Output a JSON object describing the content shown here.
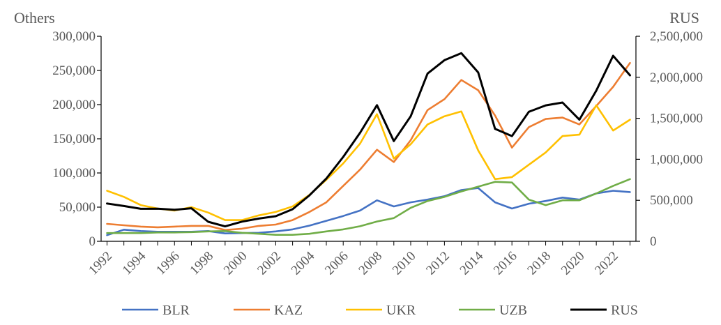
{
  "chart_data": {
    "type": "line",
    "title": "",
    "y_left_label": "Others",
    "y_right_label": "RUS",
    "y_left_lim": [
      0,
      300000
    ],
    "y_right_lim": [
      0,
      2500000
    ],
    "y_left_ticks": [
      "0",
      "50,000",
      "100,000",
      "150,000",
      "200,000",
      "250,000",
      "300,000"
    ],
    "y_right_ticks": [
      "0",
      "500,000",
      "1,000,000",
      "1,500,000",
      "2,000,000",
      "2,500,000"
    ],
    "x_tick_labels": [
      "1992",
      "1994",
      "1996",
      "1998",
      "2000",
      "2002",
      "2004",
      "2006",
      "2008",
      "2010",
      "2012",
      "2014",
      "2016",
      "2018",
      "2020",
      "2022"
    ],
    "x": [
      1992,
      1993,
      1994,
      1995,
      1996,
      1997,
      1998,
      1999,
      2000,
      2001,
      2002,
      2003,
      2004,
      2005,
      2006,
      2007,
      2008,
      2009,
      2010,
      2011,
      2012,
      2013,
      2014,
      2015,
      2016,
      2017,
      2018,
      2019,
      2020,
      2021,
      2022,
      2023
    ],
    "grid": false,
    "legend_position": "bottom",
    "series": [
      {
        "name": "BLR",
        "axis": "left",
        "color": "#4472C4",
        "values": [
          9000,
          17000,
          15000,
          14000,
          14000,
          14000,
          15000,
          11500,
          12000,
          12500,
          14500,
          17500,
          23000,
          30000,
          37000,
          45000,
          60000,
          51000,
          57000,
          61000,
          66000,
          75000,
          78000,
          57000,
          48000,
          55000,
          59000,
          64000,
          61000,
          70000,
          74000,
          72000
        ]
      },
      {
        "name": "KAZ",
        "axis": "left",
        "color": "#ED7D31",
        "values": [
          25500,
          23500,
          21500,
          20500,
          21500,
          22500,
          22500,
          16500,
          18500,
          22500,
          24500,
          31000,
          43000,
          57000,
          81000,
          105000,
          134000,
          116000,
          148000,
          192000,
          208000,
          236000,
          221000,
          184000,
          137000,
          167000,
          179000,
          181000,
          171000,
          198000,
          226000,
          261000
        ]
      },
      {
        "name": "UKR",
        "axis": "left",
        "color": "#FFC000",
        "values": [
          74000,
          65000,
          53000,
          48000,
          45000,
          50000,
          42000,
          31000,
          31000,
          38000,
          43000,
          51000,
          68000,
          90000,
          114000,
          143000,
          186000,
          121000,
          142000,
          171000,
          183000,
          190000,
          133000,
          91000,
          94000,
          112000,
          130000,
          154000,
          156000,
          199000,
          162000,
          178000
        ]
      },
      {
        "name": "UZB",
        "axis": "left",
        "color": "#70AD47",
        "values": [
          12000,
          12000,
          12000,
          13000,
          13000,
          13500,
          14500,
          15000,
          12500,
          11000,
          9500,
          9500,
          11000,
          14500,
          17500,
          22000,
          29000,
          34000,
          49000,
          59000,
          65000,
          73000,
          80000,
          87000,
          86000,
          61000,
          53000,
          60000,
          60000,
          70000,
          81000,
          91000
        ]
      },
      {
        "name": "RUS",
        "axis": "right",
        "color": "#000000",
        "values": [
          461000,
          430000,
          396000,
          397000,
          384000,
          403000,
          238000,
          182000,
          240000,
          277000,
          306000,
          391000,
          560000,
          765000,
          1029000,
          1323000,
          1660000,
          1222000,
          1525000,
          2046000,
          2208000,
          2293000,
          2059000,
          1371000,
          1283000,
          1579000,
          1657000,
          1692000,
          1483000,
          1837000,
          2262000,
          2024000
        ]
      }
    ]
  }
}
